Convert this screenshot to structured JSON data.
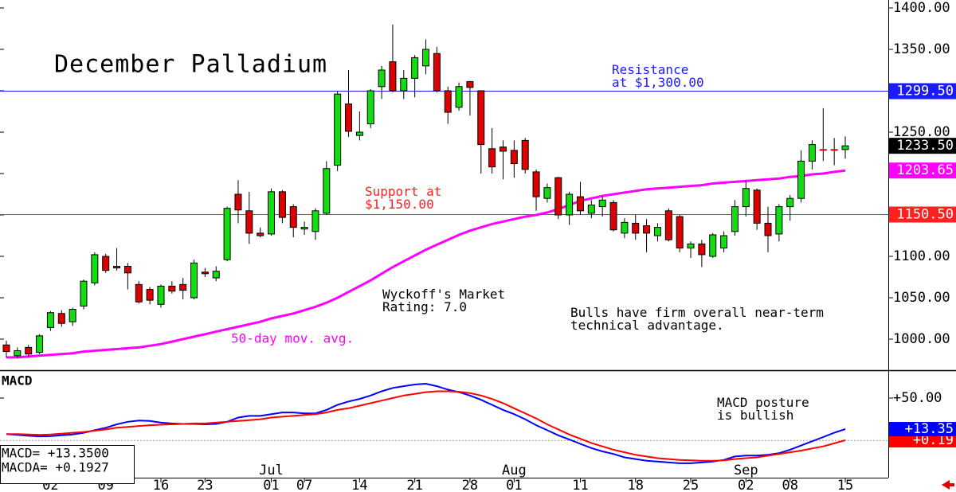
{
  "chart_data": [
    {
      "type": "candlestick",
      "title": "December Palladium",
      "categories": [
        null,
        null,
        null,
        null,
        "02",
        null,
        null,
        null,
        null,
        "09",
        null,
        null,
        null,
        null,
        "16",
        null,
        null,
        null,
        "23",
        null,
        null,
        null,
        null,
        null,
        "01",
        null,
        null,
        "07",
        null,
        null,
        null,
        null,
        "14",
        null,
        null,
        null,
        null,
        "21",
        null,
        null,
        null,
        null,
        "28",
        null,
        null,
        null,
        "01",
        null,
        null,
        null,
        null,
        null,
        "11",
        null,
        null,
        null,
        null,
        "18",
        null,
        null,
        null,
        null,
        "25",
        null,
        null,
        null,
        null,
        "02",
        null,
        null,
        null,
        "08",
        null,
        null,
        null,
        null,
        "15"
      ],
      "month_labels": [
        null,
        null,
        null,
        null,
        null,
        null,
        null,
        null,
        null,
        null,
        null,
        null,
        null,
        null,
        null,
        null,
        null,
        null,
        null,
        null,
        null,
        null,
        null,
        null,
        "Jul",
        null,
        null,
        null,
        null,
        null,
        null,
        null,
        null,
        null,
        null,
        null,
        null,
        null,
        null,
        null,
        null,
        null,
        null,
        null,
        null,
        null,
        "Aug",
        null,
        null,
        null,
        null,
        null,
        null,
        null,
        null,
        null,
        null,
        null,
        null,
        null,
        null,
        null,
        null,
        null,
        null,
        null,
        null,
        "Sep",
        null,
        null,
        null,
        null,
        null,
        null,
        null,
        null,
        null
      ],
      "open": [
        993,
        980,
        990,
        984,
        1014,
        1031,
        1021,
        1040,
        1068,
        1100,
        1088,
        1088,
        1066,
        1060,
        1042,
        1064,
        1066,
        1050,
        1081,
        1074,
        1096,
        1175,
        1155,
        1128,
        1127,
        1178,
        1160,
        1133,
        1130,
        1152,
        1210,
        1284,
        1246,
        1260,
        1305,
        1335,
        1300,
        1315,
        1330,
        1345,
        1300,
        1280,
        1311,
        1300,
        1230,
        1232,
        1228,
        1240,
        1202,
        1170,
        1195,
        1150,
        1172,
        1152,
        1160,
        1165,
        1128,
        1140,
        1137,
        1125,
        1155,
        1148,
        1110,
        1115,
        1100,
        1110,
        1130,
        1160,
        1180,
        1140,
        1127,
        1160,
        1170,
        1215,
        1229,
        1229,
        1229
      ],
      "high": [
        998,
        990,
        993,
        1006,
        1034,
        1035,
        1038,
        1072,
        1105,
        1103,
        1110,
        1092,
        1070,
        1063,
        1066,
        1070,
        1074,
        1096,
        1086,
        1088,
        1160,
        1192,
        1178,
        1135,
        1182,
        1180,
        1163,
        1142,
        1158,
        1215,
        1300,
        1325,
        1275,
        1302,
        1330,
        1380,
        1325,
        1343,
        1362,
        1353,
        1305,
        1310,
        1312,
        1300,
        1255,
        1240,
        1240,
        1243,
        1205,
        1188,
        1196,
        1178,
        1190,
        1168,
        1172,
        1168,
        1146,
        1150,
        1145,
        1140,
        1158,
        1150,
        1118,
        1120,
        1128,
        1130,
        1168,
        1192,
        1182,
        1160,
        1163,
        1174,
        1228,
        1240,
        1279,
        1243,
        1245
      ],
      "low": [
        978,
        977,
        978,
        982,
        1010,
        1015,
        1016,
        1036,
        1065,
        1080,
        1083,
        1060,
        1043,
        1042,
        1038,
        1055,
        1048,
        1048,
        1075,
        1070,
        1094,
        1140,
        1115,
        1123,
        1125,
        1140,
        1123,
        1126,
        1120,
        1150,
        1203,
        1244,
        1240,
        1255,
        1290,
        1298,
        1290,
        1292,
        1320,
        1298,
        1260,
        1276,
        1270,
        1200,
        1200,
        1193,
        1195,
        1200,
        1155,
        1165,
        1145,
        1138,
        1150,
        1146,
        1148,
        1130,
        1122,
        1120,
        1105,
        1118,
        1118,
        1105,
        1098,
        1087,
        1098,
        1105,
        1125,
        1148,
        1132,
        1105,
        1118,
        1143,
        1165,
        1205,
        1215,
        1210,
        1218
      ],
      "close": [
        985,
        986,
        982,
        1004,
        1032,
        1019,
        1036,
        1070,
        1102,
        1083,
        1086,
        1080,
        1045,
        1047,
        1064,
        1058,
        1059,
        1092,
        1079,
        1082,
        1158,
        1156,
        1128,
        1125,
        1178,
        1147,
        1135,
        1135,
        1155,
        1206,
        1296,
        1251,
        1250,
        1300,
        1325,
        1300,
        1315,
        1340,
        1350,
        1300,
        1274,
        1305,
        1304,
        1235,
        1208,
        1227,
        1212,
        1205,
        1172,
        1183,
        1150,
        1175,
        1155,
        1162,
        1168,
        1132,
        1141,
        1128,
        1128,
        1135,
        1120,
        1110,
        1115,
        1102,
        1126,
        1125,
        1160,
        1182,
        1140,
        1125,
        1160,
        1170,
        1215,
        1235,
        1228,
        1228,
        1233.5
      ],
      "up_color": "#11dd11",
      "down_color": "#dd0000",
      "series": [
        {
          "name": "50-day mov. avg.",
          "color": "#ff00ff",
          "values": [
            978,
            978,
            979,
            980,
            981,
            982,
            983,
            985,
            986,
            987,
            988,
            989,
            990,
            992,
            994,
            997,
            1000,
            1003,
            1006,
            1009,
            1012,
            1015,
            1018,
            1021,
            1025,
            1028,
            1031,
            1035,
            1039,
            1044,
            1050,
            1057,
            1064,
            1071,
            1079,
            1087,
            1094,
            1101,
            1108,
            1114,
            1120,
            1126,
            1131,
            1135,
            1139,
            1142,
            1145,
            1148,
            1150,
            1153,
            1157,
            1162,
            1167,
            1170,
            1173,
            1175,
            1177,
            1179,
            1181,
            1182,
            1183,
            1184,
            1185,
            1186,
            1188,
            1189,
            1190,
            1191,
            1192,
            1193,
            1194,
            1196,
            1197,
            1199,
            1200,
            1202,
            1203.65
          ]
        }
      ],
      "price_markers": [
        {
          "value": 1299.5,
          "label": "1299.50",
          "color": "#1a1aff",
          "line": true
        },
        {
          "value": 1233.5,
          "label": "1233.50",
          "color": "#000000",
          "line": false
        },
        {
          "value": 1203.65,
          "label": "1203.65",
          "color": "#ff00ff",
          "line": false
        },
        {
          "value": 1150.5,
          "label": "1150.50",
          "color": "#ff2020",
          "line": true
        }
      ],
      "ylim": [
        962.5,
        1409.6
      ],
      "yticks": [
        {
          "value": 1000,
          "label": "1000.00"
        },
        {
          "value": 1050,
          "label": "1050.00"
        },
        {
          "value": 1100,
          "label": "1100.00"
        },
        {
          "value": 1150,
          "label": "1150.00"
        },
        {
          "value": 1200,
          "label": "1200.00"
        },
        {
          "value": 1250,
          "label": "1250.00"
        },
        {
          "value": 1300,
          "label": "1300.00"
        },
        {
          "value": 1350,
          "label": "1350.00"
        },
        {
          "value": 1400,
          "label": "1400.00"
        }
      ],
      "annotations": [
        [
          "Resistance",
          "at $1,300.00"
        ],
        [
          "Support at",
          "$1,150.00"
        ],
        [
          "Wyckoff's Market",
          "Rating: 7.0"
        ],
        [
          "Bulls have firm overall near-term",
          "technical advantage."
        ]
      ]
    },
    {
      "type": "line",
      "title": "MACD",
      "series": [
        {
          "color": "#0000ff",
          "last_label": "+13.35",
          "values": [
            7.5,
            6.5,
            5.5,
            4.8,
            5,
            6,
            7,
            9,
            12,
            15,
            19,
            22,
            23.5,
            23,
            21,
            20,
            19.5,
            19.5,
            19,
            19.5,
            22,
            27,
            29,
            29,
            31,
            33,
            33,
            32,
            32,
            36,
            42,
            46,
            49,
            53,
            58,
            62,
            64,
            66,
            67,
            64,
            60,
            57,
            53,
            48,
            42,
            36,
            31,
            25,
            18,
            12,
            6,
            1,
            -4,
            -9,
            -13,
            -16,
            -20,
            -22,
            -24,
            -25,
            -26,
            -27,
            -27,
            -26,
            -25,
            -23,
            -19,
            -18,
            -18,
            -17,
            -15,
            -11,
            -6,
            -1,
            4,
            9,
            13.35
          ]
        },
        {
          "color": "#ff0000",
          "last_label": "+0.19",
          "values": [
            7.5,
            7.5,
            7,
            6.6,
            7,
            8,
            9,
            10,
            11.5,
            13,
            15,
            16,
            17,
            18,
            18.5,
            19,
            19.5,
            20,
            20,
            21,
            22,
            23,
            24,
            25,
            27,
            28,
            29,
            30,
            31,
            33,
            36,
            38,
            41,
            44,
            47,
            50,
            53,
            55,
            57,
            58,
            58,
            57.5,
            56,
            53,
            49,
            44,
            38,
            32,
            26,
            19,
            13,
            7,
            2,
            -3,
            -7,
            -11,
            -14,
            -17,
            -19,
            -21,
            -22,
            -23,
            -23.5,
            -24,
            -24,
            -23.5,
            -22,
            -21,
            -20,
            -18,
            -16,
            -14,
            -12,
            -9.5,
            -7,
            -3.5,
            0.19
          ]
        }
      ],
      "ylim": [
        -44,
        82
      ],
      "yticks": [
        {
          "value": 50,
          "label": "+50.00"
        }
      ],
      "annotations": [
        [
          "MACD posture",
          "is bullish"
        ]
      ],
      "readouts": [
        "MACD= +13.3500",
        "MACDA= +0.1927"
      ]
    }
  ]
}
